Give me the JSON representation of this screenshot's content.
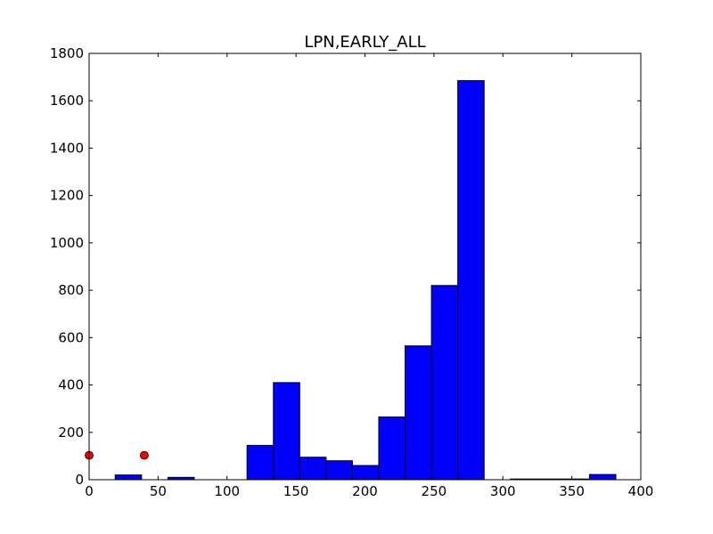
{
  "chart_data": {
    "type": "bar",
    "title": "LPN,EARLY_ALL",
    "xlabel": "",
    "ylabel": "",
    "xlim": [
      0,
      400
    ],
    "ylim": [
      0,
      1800
    ],
    "xticks": [
      0,
      50,
      100,
      150,
      200,
      250,
      300,
      350,
      400
    ],
    "yticks": [
      0,
      200,
      400,
      600,
      800,
      1000,
      1200,
      1400,
      1600,
      1800
    ],
    "grid": false,
    "bar_color": "#0000ff",
    "marker_color": "#ff0000",
    "bins": [
      {
        "x0": 18.9,
        "x1": 38.0,
        "count": 20
      },
      {
        "x0": 57.1,
        "x1": 76.2,
        "count": 10
      },
      {
        "x0": 114.5,
        "x1": 133.6,
        "count": 145
      },
      {
        "x0": 133.6,
        "x1": 152.7,
        "count": 410
      },
      {
        "x0": 152.7,
        "x1": 171.8,
        "count": 95
      },
      {
        "x0": 171.8,
        "x1": 190.9,
        "count": 80
      },
      {
        "x0": 190.9,
        "x1": 210.0,
        "count": 60
      },
      {
        "x0": 210.0,
        "x1": 229.1,
        "count": 265
      },
      {
        "x0": 229.1,
        "x1": 248.2,
        "count": 565
      },
      {
        "x0": 248.2,
        "x1": 267.3,
        "count": 820
      },
      {
        "x0": 267.3,
        "x1": 286.4,
        "count": 1685
      },
      {
        "x0": 305.5,
        "x1": 324.6,
        "count": 3
      },
      {
        "x0": 324.6,
        "x1": 343.7,
        "count": 3
      },
      {
        "x0": 343.7,
        "x1": 362.8,
        "count": 3
      },
      {
        "x0": 362.8,
        "x1": 381.9,
        "count": 22
      }
    ],
    "markers": [
      {
        "x": 0,
        "y": 103
      },
      {
        "x": 40,
        "y": 103
      }
    ]
  }
}
